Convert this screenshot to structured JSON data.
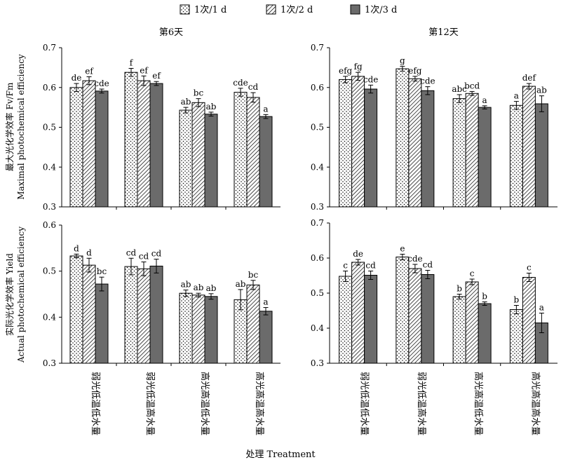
{
  "legend": [
    {
      "label": "1次/1 d",
      "pattern": "dots"
    },
    {
      "label": "1次/2 d",
      "pattern": "hatch"
    },
    {
      "label": "1次/3 d",
      "pattern": "solid"
    }
  ],
  "ylabel_top_cn": "最大光化学效率 Fv/Fm",
  "ylabel_top_en": "Maximal photochemical efficiency",
  "ylabel_bottom_cn": "实际光化学效率 Yield",
  "ylabel_bottom_en": "Actual photochemical efficiency",
  "xlabel": "处理 Treatment",
  "categories": [
    "弱光低温低水量",
    "弱光低温高水量",
    "高光高温低水量",
    "高光高温高水量"
  ],
  "colors": {
    "solid": "#6b6b6b",
    "stroke": "#000000",
    "background": "#ffffff"
  },
  "chart_data": [
    {
      "type": "bar",
      "title": "第6天",
      "categories": [
        "弱光低温低水量",
        "弱光低温高水量",
        "高光高温低水量",
        "高光高温高水量"
      ],
      "ylim": [
        0.3,
        0.7
      ],
      "yticks": [
        "0.3",
        "0.4",
        "0.5",
        "0.6",
        "0.7"
      ],
      "series": [
        {
          "name": "1次/1 d",
          "values": [
            0.6,
            0.638,
            0.543,
            0.588
          ],
          "errors": [
            0.01,
            0.01,
            0.007,
            0.01
          ],
          "labels": [
            "de",
            "f",
            "ab",
            "cde"
          ]
        },
        {
          "name": "1次/2 d",
          "values": [
            0.617,
            0.617,
            0.562,
            0.575
          ],
          "errors": [
            0.01,
            0.012,
            0.01,
            0.012
          ],
          "labels": [
            "ef",
            "ef",
            "bc",
            "cd"
          ]
        },
        {
          "name": "1次/3 d",
          "values": [
            0.591,
            0.61,
            0.533,
            0.527
          ],
          "errors": [
            0.005,
            0.005,
            0.005,
            0.005
          ],
          "labels": [
            "cde",
            "ef",
            "ab",
            "a"
          ]
        }
      ]
    },
    {
      "type": "bar",
      "title": "第12天",
      "categories": [
        "弱光低温低水量",
        "弱光低温高水量",
        "高光高温低水量",
        "高光高温高水量"
      ],
      "ylim": [
        0.3,
        0.7
      ],
      "yticks": [
        "0.3",
        "0.4",
        "0.5",
        "0.6",
        "0.7"
      ],
      "series": [
        {
          "name": "1次/1 d",
          "values": [
            0.62,
            0.647,
            0.572,
            0.555
          ],
          "errors": [
            0.008,
            0.006,
            0.01,
            0.01
          ],
          "labels": [
            "efg",
            "g",
            "abc",
            "a"
          ]
        },
        {
          "name": "1次/2 d",
          "values": [
            0.628,
            0.622,
            0.585,
            0.603
          ],
          "errors": [
            0.01,
            0.006,
            0.005,
            0.007
          ],
          "labels": [
            "fg",
            "efg",
            "bcd",
            "def"
          ]
        },
        {
          "name": "1次/3 d",
          "values": [
            0.596,
            0.592,
            0.55,
            0.559
          ],
          "errors": [
            0.01,
            0.01,
            0.004,
            0.02
          ],
          "labels": [
            "cde",
            "cde",
            "a",
            "ab"
          ]
        }
      ]
    },
    {
      "type": "bar",
      "title": "",
      "categories": [
        "弱光低温低水量",
        "弱光低温高水量",
        "高光高温低水量",
        "高光高温高水量"
      ],
      "ylim": [
        0.3,
        0.6
      ],
      "yticks": [
        "0.3",
        "0.4",
        "0.5",
        "0.6"
      ],
      "series": [
        {
          "name": "1次/1 d",
          "values": [
            0.533,
            0.51,
            0.452,
            0.438
          ],
          "errors": [
            0.004,
            0.018,
            0.007,
            0.022
          ],
          "labels": [
            "d",
            "cd",
            "ab",
            "ab"
          ]
        },
        {
          "name": "1次/2 d",
          "values": [
            0.513,
            0.505,
            0.448,
            0.47
          ],
          "errors": [
            0.015,
            0.015,
            0.004,
            0.01
          ],
          "labels": [
            "d",
            "cd",
            "ab",
            "bc"
          ]
        },
        {
          "name": "1次/3 d",
          "values": [
            0.472,
            0.511,
            0.445,
            0.413
          ],
          "errors": [
            0.015,
            0.015,
            0.006,
            0.008
          ],
          "labels": [
            "bc",
            "cd",
            "ab",
            "a"
          ]
        }
      ]
    },
    {
      "type": "bar",
      "title": "",
      "categories": [
        "弱光低温低水量",
        "弱光低温高水量",
        "高光高温低水量",
        "高光高温高水量"
      ],
      "ylim": [
        0.3,
        0.7
      ],
      "yticks": [
        "0.3",
        "0.4",
        "0.5",
        "0.6",
        "0.7"
      ],
      "series": [
        {
          "name": "1次/1 d",
          "values": [
            0.548,
            0.603,
            0.49,
            0.453
          ],
          "errors": [
            0.015,
            0.008,
            0.007,
            0.012
          ],
          "labels": [
            "c",
            "e",
            "b",
            "b"
          ]
        },
        {
          "name": "1次/2 d",
          "values": [
            0.588,
            0.57,
            0.532,
            0.545
          ],
          "errors": [
            0.008,
            0.012,
            0.008,
            0.012
          ],
          "labels": [
            "de",
            "cde",
            "c",
            "c"
          ]
        },
        {
          "name": "1次/3 d",
          "values": [
            0.551,
            0.553,
            0.47,
            0.415
          ],
          "errors": [
            0.012,
            0.012,
            0.005,
            0.028
          ],
          "labels": [
            "cd",
            "cd",
            "b",
            "a"
          ]
        }
      ]
    }
  ]
}
